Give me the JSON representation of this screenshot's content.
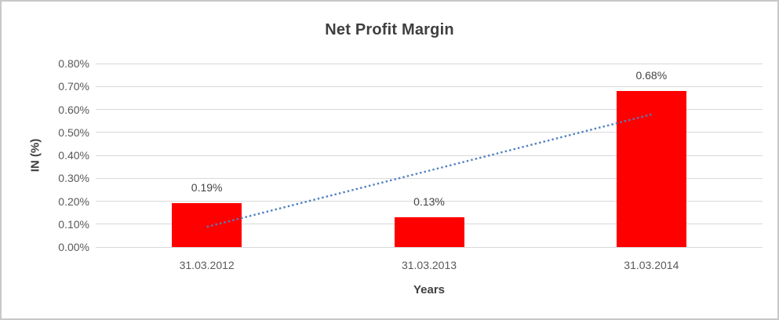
{
  "window": {
    "background": "#ffffff",
    "border_color": "#c8c8c8"
  },
  "chart_data": {
    "type": "bar",
    "title": "Net Profit Margin",
    "xlabel": "Years",
    "ylabel": "IN (%)",
    "categories": [
      "31.03.2012",
      "31.03.2013",
      "31.03.2014"
    ],
    "values": [
      0.19,
      0.13,
      0.68
    ],
    "data_labels": [
      "0.19%",
      "0.13%",
      "0.68%"
    ],
    "ylim": [
      0,
      0.8
    ],
    "ytick_step": 0.1,
    "ytick_labels": [
      "0.00%",
      "0.10%",
      "0.20%",
      "0.30%",
      "0.40%",
      "0.50%",
      "0.60%",
      "0.70%",
      "0.80%"
    ],
    "grid": true,
    "legend": false,
    "bar_color": "#ff0000",
    "gridline_color": "#d9d9d9",
    "trendline": {
      "style": "dotted",
      "color": "#4f81bd",
      "start_value": 0.088,
      "end_value": 0.578
    }
  },
  "text_colors": {
    "title": "#3f3f3f",
    "axis_title": "#404040",
    "tick_label": "#595959",
    "data_label": "#444444"
  }
}
